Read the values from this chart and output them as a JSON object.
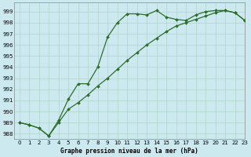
{
  "title": "Graphe pression niveau de la mer (hPa)",
  "background_color": "#cde9f0",
  "grid_color": "#b0d4c8",
  "line_color": "#2d6e2d",
  "marker_color": "#2d6e2d",
  "xlim": [
    -0.5,
    23
  ],
  "ylim": [
    987.5,
    999.8
  ],
  "yticks": [
    988,
    989,
    990,
    991,
    992,
    993,
    994,
    995,
    996,
    997,
    998,
    999
  ],
  "xticks": [
    0,
    1,
    2,
    3,
    4,
    5,
    6,
    7,
    8,
    9,
    10,
    11,
    12,
    13,
    14,
    15,
    16,
    17,
    18,
    19,
    20,
    21,
    22,
    23
  ],
  "series1_x": [
    0,
    1,
    2,
    3,
    4,
    5,
    6,
    7,
    8,
    9,
    10,
    11,
    12,
    13,
    14,
    15,
    16,
    17,
    18,
    19,
    20,
    21,
    22,
    23
  ],
  "series1_y": [
    989.0,
    988.8,
    988.5,
    987.8,
    989.2,
    991.1,
    992.5,
    992.5,
    994.0,
    996.7,
    998.0,
    998.8,
    998.8,
    998.7,
    999.1,
    998.5,
    998.3,
    998.2,
    998.7,
    999.0,
    999.1,
    999.1,
    998.9,
    998.2
  ],
  "series2_x": [
    0,
    1,
    2,
    3,
    4,
    5,
    6,
    7,
    8,
    9,
    10,
    11,
    12,
    13,
    14,
    15,
    16,
    17,
    18,
    19,
    20,
    21,
    22,
    23
  ],
  "series2_y": [
    989.0,
    988.8,
    988.5,
    987.8,
    989.0,
    990.2,
    990.8,
    991.5,
    992.3,
    993.0,
    993.8,
    994.6,
    995.3,
    996.0,
    996.6,
    997.2,
    997.7,
    998.0,
    998.3,
    998.6,
    998.9,
    999.1,
    998.9,
    998.2
  ],
  "ylabel_fontsize": 5.5,
  "tick_fontsize": 5,
  "figsize": [
    3.2,
    2.0
  ],
  "dpi": 100
}
